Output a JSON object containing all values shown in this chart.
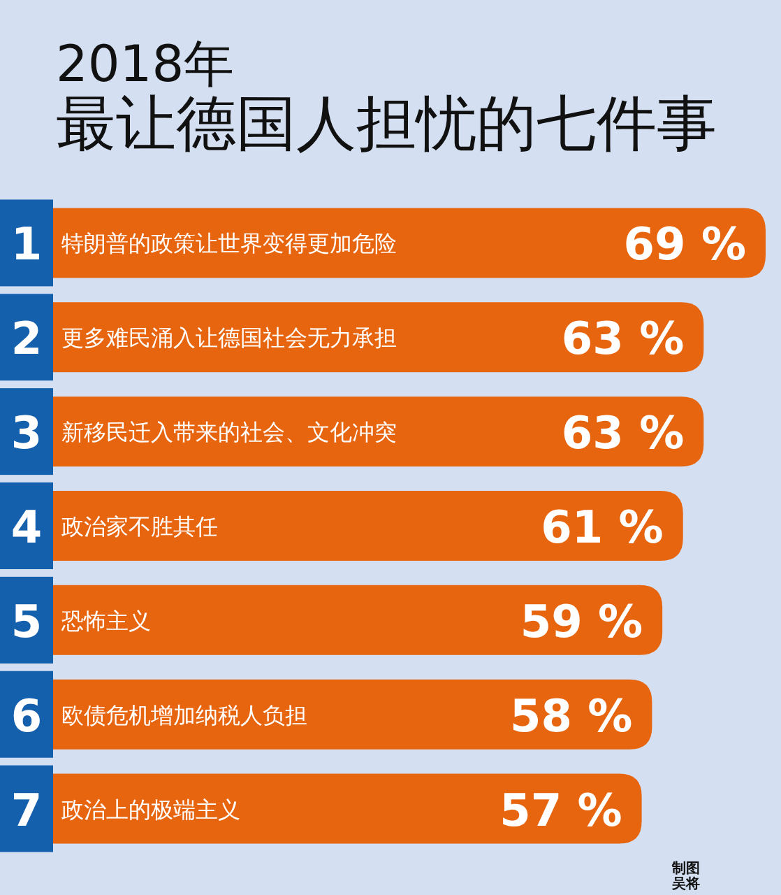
{
  "chart_data": {
    "type": "bar",
    "orientation": "horizontal",
    "title": "2018年",
    "subtitle": "最让德国人担忧的七件事",
    "categories": [
      "特朗普的政策让世界变得更加危险",
      "更多难民涌入让德国社会无力承担",
      "新移民迁入带来的社会、文化冲突",
      "政治家不胜其任",
      "恐怖主义",
      "欧债危机增加纳税人负担",
      "政治上的极端主义"
    ],
    "values": [
      69,
      63,
      63,
      61,
      59,
      58,
      57
    ],
    "value_labels": [
      "69 %",
      "63 %",
      "63 %",
      "61 %",
      "59 %",
      "58 %",
      "57 %"
    ],
    "color": "#e8650f",
    "annotations": [
      "1",
      "2",
      "3",
      "4",
      "5",
      "6",
      "7",
      "制图",
      "吴将"
    ]
  }
}
